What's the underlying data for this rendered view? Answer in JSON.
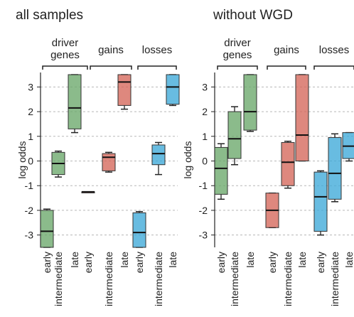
{
  "chart_data": [
    {
      "type": "box",
      "title": "all samples",
      "xlabel": "",
      "ylabel": "log odds",
      "ylim": [
        -3.5,
        3.5
      ],
      "yticks": [
        "3",
        "2",
        "1",
        "0",
        "-1",
        "-2",
        "-3"
      ],
      "grid": "horizontal dashed",
      "groups": [
        {
          "name": "driver genes",
          "color": "#6aa86a",
          "boxes": [
            {
              "category": "early",
              "min": -3.5,
              "q1": -3.5,
              "median": -2.85,
              "q3": -2.0,
              "max": -1.95
            },
            {
              "category": "intermediate",
              "min": -0.65,
              "q1": -0.55,
              "median": -0.1,
              "q3": 0.35,
              "max": 0.4
            },
            {
              "category": "late",
              "min": 1.15,
              "q1": 1.3,
              "median": 2.15,
              "q3": 3.5,
              "max": 3.5
            }
          ]
        },
        {
          "name": "gains",
          "color": "#d5675a",
          "boxes": [
            {
              "category": "early",
              "min": -1.25,
              "q1": -1.25,
              "median": -1.25,
              "q3": -1.25,
              "max": -1.25
            },
            {
              "category": "intermediate",
              "min": -0.45,
              "q1": -0.4,
              "median": 0.15,
              "q3": 0.3,
              "max": 0.35
            },
            {
              "category": "late",
              "min": 2.1,
              "q1": 2.25,
              "median": 3.2,
              "q3": 3.5,
              "max": 3.5
            }
          ]
        },
        {
          "name": "losses",
          "color": "#3ea9d9",
          "boxes": [
            {
              "category": "early",
              "min": -3.5,
              "q1": -3.5,
              "median": -2.9,
              "q3": -2.1,
              "max": -2.05
            },
            {
              "category": "intermediate",
              "min": -0.55,
              "q1": -0.15,
              "median": 0.3,
              "q3": 0.65,
              "max": 0.75
            },
            {
              "category": "late",
              "min": 2.25,
              "q1": 2.3,
              "median": 3.0,
              "q3": 3.5,
              "max": 3.5
            }
          ]
        }
      ]
    },
    {
      "type": "box",
      "title": "without WGD",
      "xlabel": "",
      "ylabel": "log odds",
      "ylim": [
        -3.5,
        3.5
      ],
      "yticks": [
        "3",
        "2",
        "1",
        "0",
        "-1",
        "-2",
        "-3"
      ],
      "grid": "horizontal dashed",
      "groups": [
        {
          "name": "driver genes",
          "color": "#6aa86a",
          "boxes": [
            {
              "category": "early",
              "min": -1.55,
              "q1": -1.35,
              "median": -0.3,
              "q3": 0.55,
              "max": 0.7
            },
            {
              "category": "intermediate",
              "min": -0.15,
              "q1": 0.1,
              "median": 0.9,
              "q3": 2.0,
              "max": 2.2
            },
            {
              "category": "late",
              "min": 1.2,
              "q1": 1.25,
              "median": 2.0,
              "q3": 3.5,
              "max": 3.5
            }
          ]
        },
        {
          "name": "gains",
          "color": "#d5675a",
          "boxes": [
            {
              "category": "early",
              "min": -2.7,
              "q1": -2.7,
              "median": -2.0,
              "q3": -1.3,
              "max": -1.3
            },
            {
              "category": "intermediate",
              "min": -1.1,
              "q1": -1.0,
              "median": -0.05,
              "q3": 0.75,
              "max": 0.8
            },
            {
              "category": "late",
              "min": 0.0,
              "q1": 0.0,
              "median": 1.05,
              "q3": 3.5,
              "max": 3.5
            }
          ]
        },
        {
          "name": "losses",
          "color": "#3ea9d9",
          "boxes": [
            {
              "category": "early",
              "min": -3.0,
              "q1": -2.85,
              "median": -1.45,
              "q3": -0.45,
              "max": -0.4
            },
            {
              "category": "intermediate",
              "min": -1.65,
              "q1": -1.55,
              "median": -0.5,
              "q3": 0.95,
              "max": 1.1
            },
            {
              "category": "late",
              "min": 0.0,
              "q1": 0.1,
              "median": 0.6,
              "q3": 1.15,
              "max": 1.15
            }
          ]
        }
      ]
    }
  ]
}
